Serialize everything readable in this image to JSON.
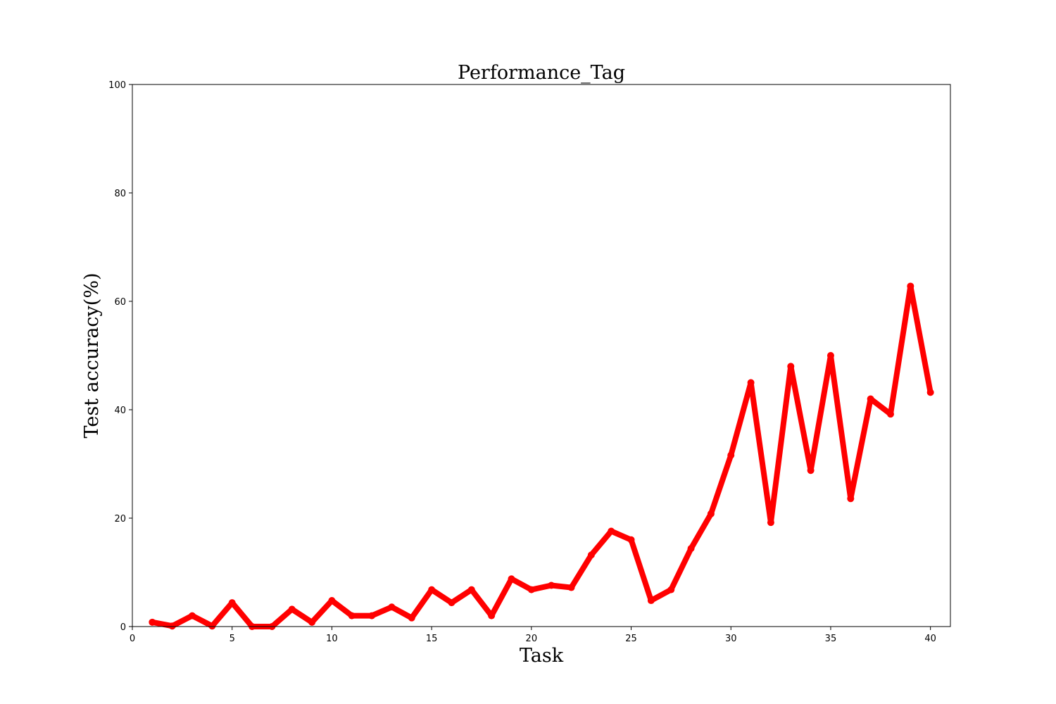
{
  "chart_data": {
    "type": "line",
    "title": "Performance_Tag",
    "xlabel": "Task",
    "ylabel": "Test accuracy(%)",
    "xlim": [
      0,
      41
    ],
    "ylim": [
      0,
      100
    ],
    "xticks": [
      0,
      5,
      10,
      15,
      20,
      25,
      30,
      35,
      40
    ],
    "yticks": [
      0,
      20,
      40,
      60,
      80,
      100
    ],
    "grid": false,
    "series": [
      {
        "color": "#ff0000",
        "marker": "circle",
        "x": [
          1,
          2,
          3,
          4,
          5,
          6,
          7,
          8,
          9,
          10,
          11,
          12,
          13,
          14,
          15,
          16,
          17,
          18,
          19,
          20,
          21,
          22,
          23,
          24,
          25,
          26,
          27,
          28,
          29,
          30,
          31,
          32,
          33,
          34,
          35,
          36,
          37,
          38,
          39,
          40
        ],
        "values": [
          0.8,
          0.1,
          2.0,
          0.1,
          4.4,
          0.0,
          0.0,
          3.2,
          0.8,
          4.8,
          2.0,
          2.0,
          3.6,
          1.6,
          6.8,
          4.4,
          6.8,
          2.0,
          8.8,
          6.8,
          7.6,
          7.2,
          13.2,
          17.6,
          16.0,
          4.8,
          6.8,
          14.4,
          20.8,
          31.6,
          45.0,
          19.2,
          48.0,
          28.8,
          50.0,
          23.6,
          42.0,
          39.2,
          62.8,
          43.2
        ]
      }
    ]
  }
}
